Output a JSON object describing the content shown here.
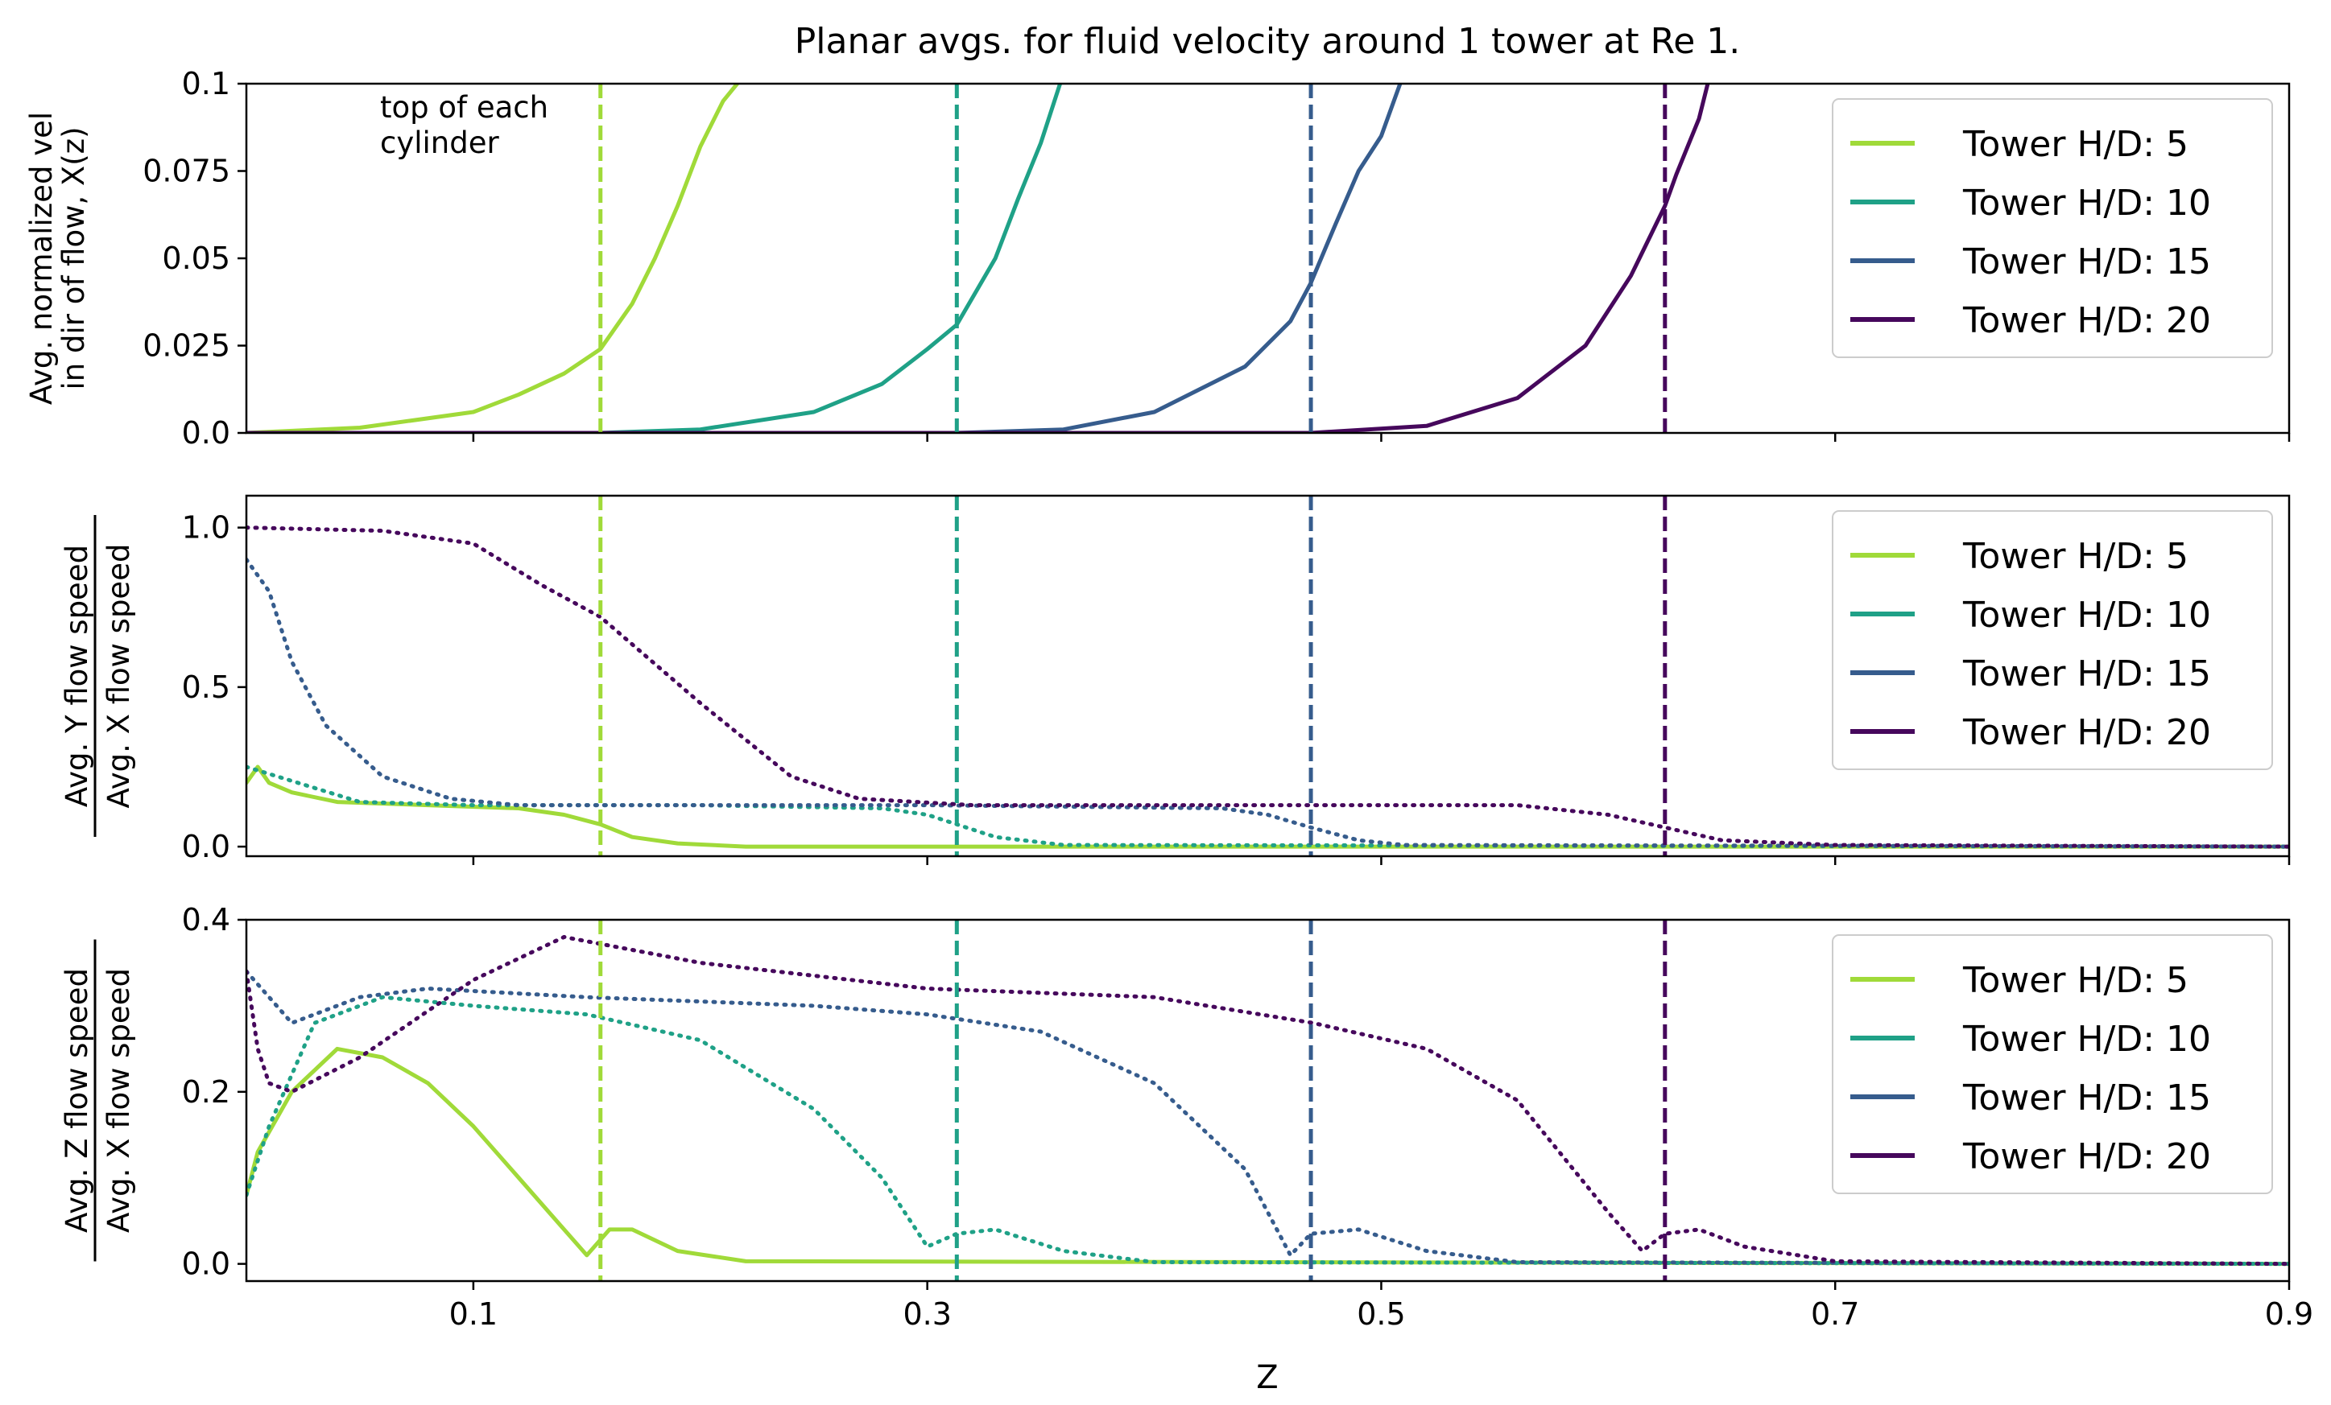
{
  "chart_data": {
    "type": "line",
    "title": "Planar avgs. for fluid velocity around 1 tower at Re 1.",
    "xlabel": "Z",
    "xlim": [
      0.0,
      0.9
    ],
    "x_ticks": [
      "0.1",
      "0.3",
      "0.5",
      "0.7",
      "0.9"
    ],
    "annotation": "top of each\ncylinder",
    "tower_tops_z": [
      0.156,
      0.313,
      0.469,
      0.625
    ],
    "series_colors": [
      "#a0da39",
      "#1fa187",
      "#365c8d",
      "#46085c"
    ],
    "panels": [
      {
        "ylabel": "Avg. normalized vel\nin dir of flow, X(z)",
        "ylim": [
          0.0,
          0.1
        ],
        "y_ticks": [
          "0.0",
          "0.025",
          "0.05",
          "0.075",
          "0.1"
        ],
        "legend": [
          "Tower H/D: 5",
          "Tower H/D: 10",
          "Tower H/D: 15",
          "Tower H/D: 20"
        ],
        "series": [
          {
            "name": "Tower H/D: 5",
            "z": [
              0.0,
              0.05,
              0.1,
              0.12,
              0.14,
              0.156,
              0.17,
              0.18,
              0.19,
              0.2,
              0.21,
              0.22
            ],
            "values": [
              0.0,
              0.0015,
              0.006,
              0.011,
              0.017,
              0.024,
              0.037,
              0.05,
              0.065,
              0.082,
              0.095,
              0.103
            ]
          },
          {
            "name": "Tower H/D: 10",
            "z": [
              0.0,
              0.156,
              0.2,
              0.25,
              0.28,
              0.3,
              0.313,
              0.33,
              0.34,
              0.35,
              0.36
            ],
            "values": [
              0.0,
              0.0,
              0.001,
              0.006,
              0.014,
              0.024,
              0.031,
              0.05,
              0.067,
              0.083,
              0.103
            ]
          },
          {
            "name": "Tower H/D: 15",
            "z": [
              0.0,
              0.313,
              0.36,
              0.4,
              0.44,
              0.46,
              0.469,
              0.48,
              0.49,
              0.5,
              0.51
            ],
            "values": [
              0.0,
              0.0,
              0.001,
              0.006,
              0.019,
              0.032,
              0.043,
              0.06,
              0.075,
              0.085,
              0.103
            ]
          },
          {
            "name": "Tower H/D: 20",
            "z": [
              0.0,
              0.469,
              0.52,
              0.56,
              0.59,
              0.61,
              0.625,
              0.63,
              0.635,
              0.64,
              0.645
            ],
            "values": [
              0.0,
              0.0,
              0.002,
              0.01,
              0.025,
              0.045,
              0.065,
              0.074,
              0.082,
              0.09,
              0.103
            ]
          }
        ]
      },
      {
        "ylabel": "Avg. Y flow speed / Avg. X flow speed",
        "ylim": [
          -0.03,
          1.1
        ],
        "y_ticks": [
          "0.0",
          "0.5",
          "1.0"
        ],
        "legend": [
          "Tower H/D: 5",
          "Tower H/D: 10",
          "Tower H/D: 15",
          "Tower H/D: 20"
        ],
        "series": [
          {
            "name": "Tower H/D: 5",
            "z": [
              0.0,
              0.005,
              0.01,
              0.02,
              0.04,
              0.08,
              0.12,
              0.14,
              0.156,
              0.17,
              0.19,
              0.22,
              0.9
            ],
            "values": [
              0.2,
              0.25,
              0.2,
              0.17,
              0.14,
              0.13,
              0.12,
              0.1,
              0.07,
              0.03,
              0.01,
              0.0,
              0.0
            ]
          },
          {
            "name": "Tower H/D: 10",
            "z": [
              0.0,
              0.05,
              0.1,
              0.2,
              0.28,
              0.3,
              0.313,
              0.33,
              0.36,
              0.9
            ],
            "values": [
              0.25,
              0.14,
              0.13,
              0.13,
              0.12,
              0.1,
              0.07,
              0.03,
              0.005,
              0.0
            ]
          },
          {
            "name": "Tower H/D: 15",
            "z": [
              0.0,
              0.01,
              0.02,
              0.035,
              0.06,
              0.09,
              0.12,
              0.2,
              0.3,
              0.43,
              0.45,
              0.469,
              0.49,
              0.51,
              0.9
            ],
            "values": [
              0.9,
              0.8,
              0.58,
              0.38,
              0.22,
              0.15,
              0.13,
              0.13,
              0.13,
              0.12,
              0.1,
              0.06,
              0.02,
              0.005,
              0.0
            ]
          },
          {
            "name": "Tower H/D: 20",
            "z": [
              0.0,
              0.06,
              0.1,
              0.13,
              0.156,
              0.2,
              0.24,
              0.27,
              0.32,
              0.45,
              0.56,
              0.6,
              0.625,
              0.65,
              0.7,
              0.9
            ],
            "values": [
              1.0,
              0.99,
              0.95,
              0.82,
              0.72,
              0.45,
              0.22,
              0.15,
              0.13,
              0.13,
              0.13,
              0.1,
              0.06,
              0.02,
              0.005,
              0.0
            ]
          }
        ]
      },
      {
        "ylabel": "Avg. Z flow speed / Avg. X flow speed",
        "ylim": [
          -0.02,
          0.4
        ],
        "y_ticks": [
          "0.0",
          "0.2",
          "0.4"
        ],
        "legend": [
          "Tower H/D: 5",
          "Tower H/D: 10",
          "Tower H/D: 15",
          "Tower H/D: 20"
        ],
        "series": [
          {
            "name": "Tower H/D: 5",
            "z": [
              0.0,
              0.005,
              0.02,
              0.04,
              0.06,
              0.08,
              0.1,
              0.12,
              0.14,
              0.15,
              0.16,
              0.17,
              0.19,
              0.22,
              0.9
            ],
            "values": [
              0.08,
              0.13,
              0.2,
              0.25,
              0.24,
              0.21,
              0.16,
              0.1,
              0.04,
              0.01,
              0.04,
              0.04,
              0.015,
              0.003,
              0.0
            ]
          },
          {
            "name": "Tower H/D: 10",
            "z": [
              0.0,
              0.01,
              0.03,
              0.06,
              0.1,
              0.15,
              0.2,
              0.25,
              0.28,
              0.3,
              0.313,
              0.33,
              0.36,
              0.4,
              0.9
            ],
            "values": [
              0.08,
              0.16,
              0.28,
              0.31,
              0.3,
              0.29,
              0.26,
              0.18,
              0.1,
              0.02,
              0.035,
              0.04,
              0.015,
              0.002,
              0.0
            ]
          },
          {
            "name": "Tower H/D: 15",
            "z": [
              0.0,
              0.02,
              0.05,
              0.08,
              0.15,
              0.25,
              0.3,
              0.35,
              0.4,
              0.44,
              0.46,
              0.469,
              0.49,
              0.52,
              0.56,
              0.9
            ],
            "values": [
              0.34,
              0.28,
              0.31,
              0.32,
              0.31,
              0.3,
              0.29,
              0.27,
              0.21,
              0.11,
              0.01,
              0.035,
              0.04,
              0.015,
              0.002,
              0.0
            ]
          },
          {
            "name": "Tower H/D: 20",
            "z": [
              0.0,
              0.005,
              0.01,
              0.02,
              0.05,
              0.1,
              0.14,
              0.16,
              0.2,
              0.3,
              0.4,
              0.47,
              0.52,
              0.56,
              0.6,
              0.615,
              0.625,
              0.64,
              0.66,
              0.7,
              0.9
            ],
            "values": [
              0.34,
              0.25,
              0.21,
              0.2,
              0.24,
              0.33,
              0.38,
              0.37,
              0.35,
              0.32,
              0.31,
              0.28,
              0.25,
              0.19,
              0.06,
              0.015,
              0.035,
              0.04,
              0.02,
              0.003,
              0.0
            ]
          }
        ]
      }
    ]
  }
}
